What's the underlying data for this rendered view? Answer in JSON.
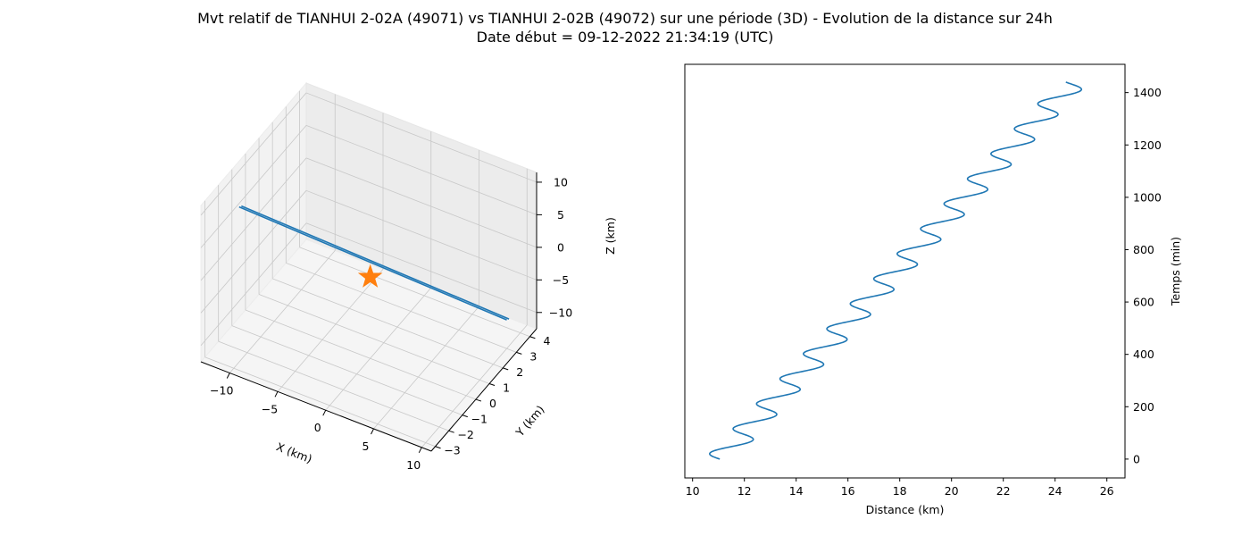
{
  "figure": {
    "title_line1": "Mvt relatif de TIANHUI 2-02A (49071) vs TIANHUI 2-02B (49072) sur une période (3D) - Evolution de la distance sur 24h",
    "title_line2": "Date début = 09-12-2022 21:34:19 (UTC)"
  },
  "chart_data": [
    {
      "type": "line",
      "projection": "3d",
      "xlabel": "X (km)",
      "ylabel": "Y (km)",
      "zlabel": "Z (km)",
      "xlim": [
        -13,
        11
      ],
      "ylim": [
        -3.3,
        4.5
      ],
      "zlim": [
        -12.5,
        11.5
      ],
      "x_ticks": [
        -10,
        -5,
        0,
        5,
        10
      ],
      "y_ticks": [
        -3,
        -2,
        -1,
        0,
        1,
        2,
        3,
        4
      ],
      "z_ticks": [
        -10,
        -5,
        0,
        5,
        10
      ],
      "grid": true,
      "line_color": "#1f77b4",
      "marker": {
        "symbol": "star",
        "color": "#ff7f0e",
        "x": 0,
        "y": 0,
        "z": 0
      },
      "series": [
        {
          "x": [
            -10,
            10
          ],
          "y": [
            -2.6,
            3.0
          ],
          "z": [
            11.3,
            -8.1
          ]
        }
      ]
    },
    {
      "type": "line",
      "xlabel": "Distance (km)",
      "ylabel": "Temps (min)",
      "xlim": [
        9.7,
        26.7
      ],
      "ylim": [
        -72,
        1508
      ],
      "x_ticks": [
        10,
        12,
        14,
        16,
        18,
        20,
        22,
        24,
        26
      ],
      "y_ticks": [
        0,
        200,
        400,
        600,
        800,
        1000,
        1200,
        1400
      ],
      "y_axis_side": "right",
      "line_color": "#1f77b4",
      "series": [
        {
          "name": "",
          "x_start": 11.05,
          "x_end": 24.7,
          "amplitude": 0.6,
          "period_min": 95.5,
          "t_start": 0,
          "t_end": 1440
        }
      ]
    }
  ]
}
